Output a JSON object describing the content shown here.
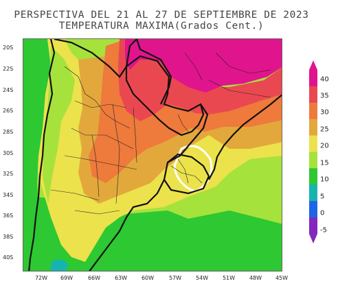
{
  "title_line1": "PERSPECTIVA DEL 21 AL 27 DE SEPTIEMBRE DE 2023",
  "title_line2": "TEMPERATURA MAXIMA(Grados Cent.)",
  "lat_labels": [
    "20S",
    "22S",
    "24S",
    "26S",
    "28S",
    "30S",
    "32S",
    "34S",
    "36S",
    "38S",
    "40S"
  ],
  "lon_labels": [
    "72W",
    "69W",
    "66W",
    "63W",
    "60W",
    "57W",
    "54W",
    "51W",
    "48W",
    "45W"
  ],
  "colorbar": {
    "labels": [
      "40",
      "35",
      "30",
      "25",
      "20",
      "15",
      "10",
      "5",
      "0",
      "-5"
    ],
    "colors": [
      "#e0148c",
      "#ea4850",
      "#ee7a3c",
      "#e3a83c",
      "#ece24c",
      "#a6e23c",
      "#2dc832",
      "#16b4b0",
      "#1e64e6",
      "#8228be"
    ]
  }
}
